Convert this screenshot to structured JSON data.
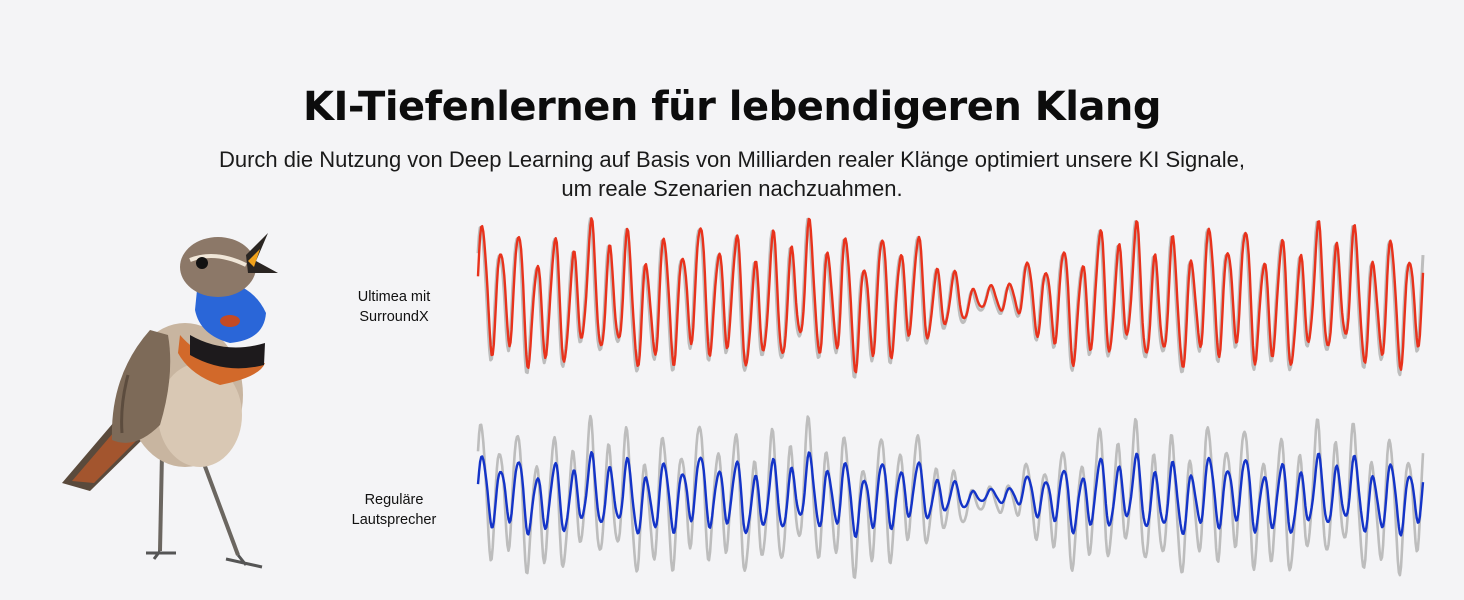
{
  "header": {
    "title": "KI-Tiefenlernen für lebendigeren Klang",
    "subtitle_line1": "Durch die Nutzung von Deep Learning auf Basis von Milliarden realer Klänge optimiert unsere KI Signale,",
    "subtitle_line2": "um reale Szenarien nachzuahmen."
  },
  "rows": [
    {
      "label_line1": "Ultimea mit",
      "label_line2": "SurroundX",
      "color": "#e8321c",
      "amplitude_ratio": 1.0
    },
    {
      "label_line1": "Reguläre",
      "label_line2": "Lautsprecher",
      "color": "#1434c8",
      "amplitude_ratio": 0.55
    }
  ],
  "reference_wave_color": "#bdbdbd",
  "image": {
    "subject": "bluethroat-bird"
  }
}
